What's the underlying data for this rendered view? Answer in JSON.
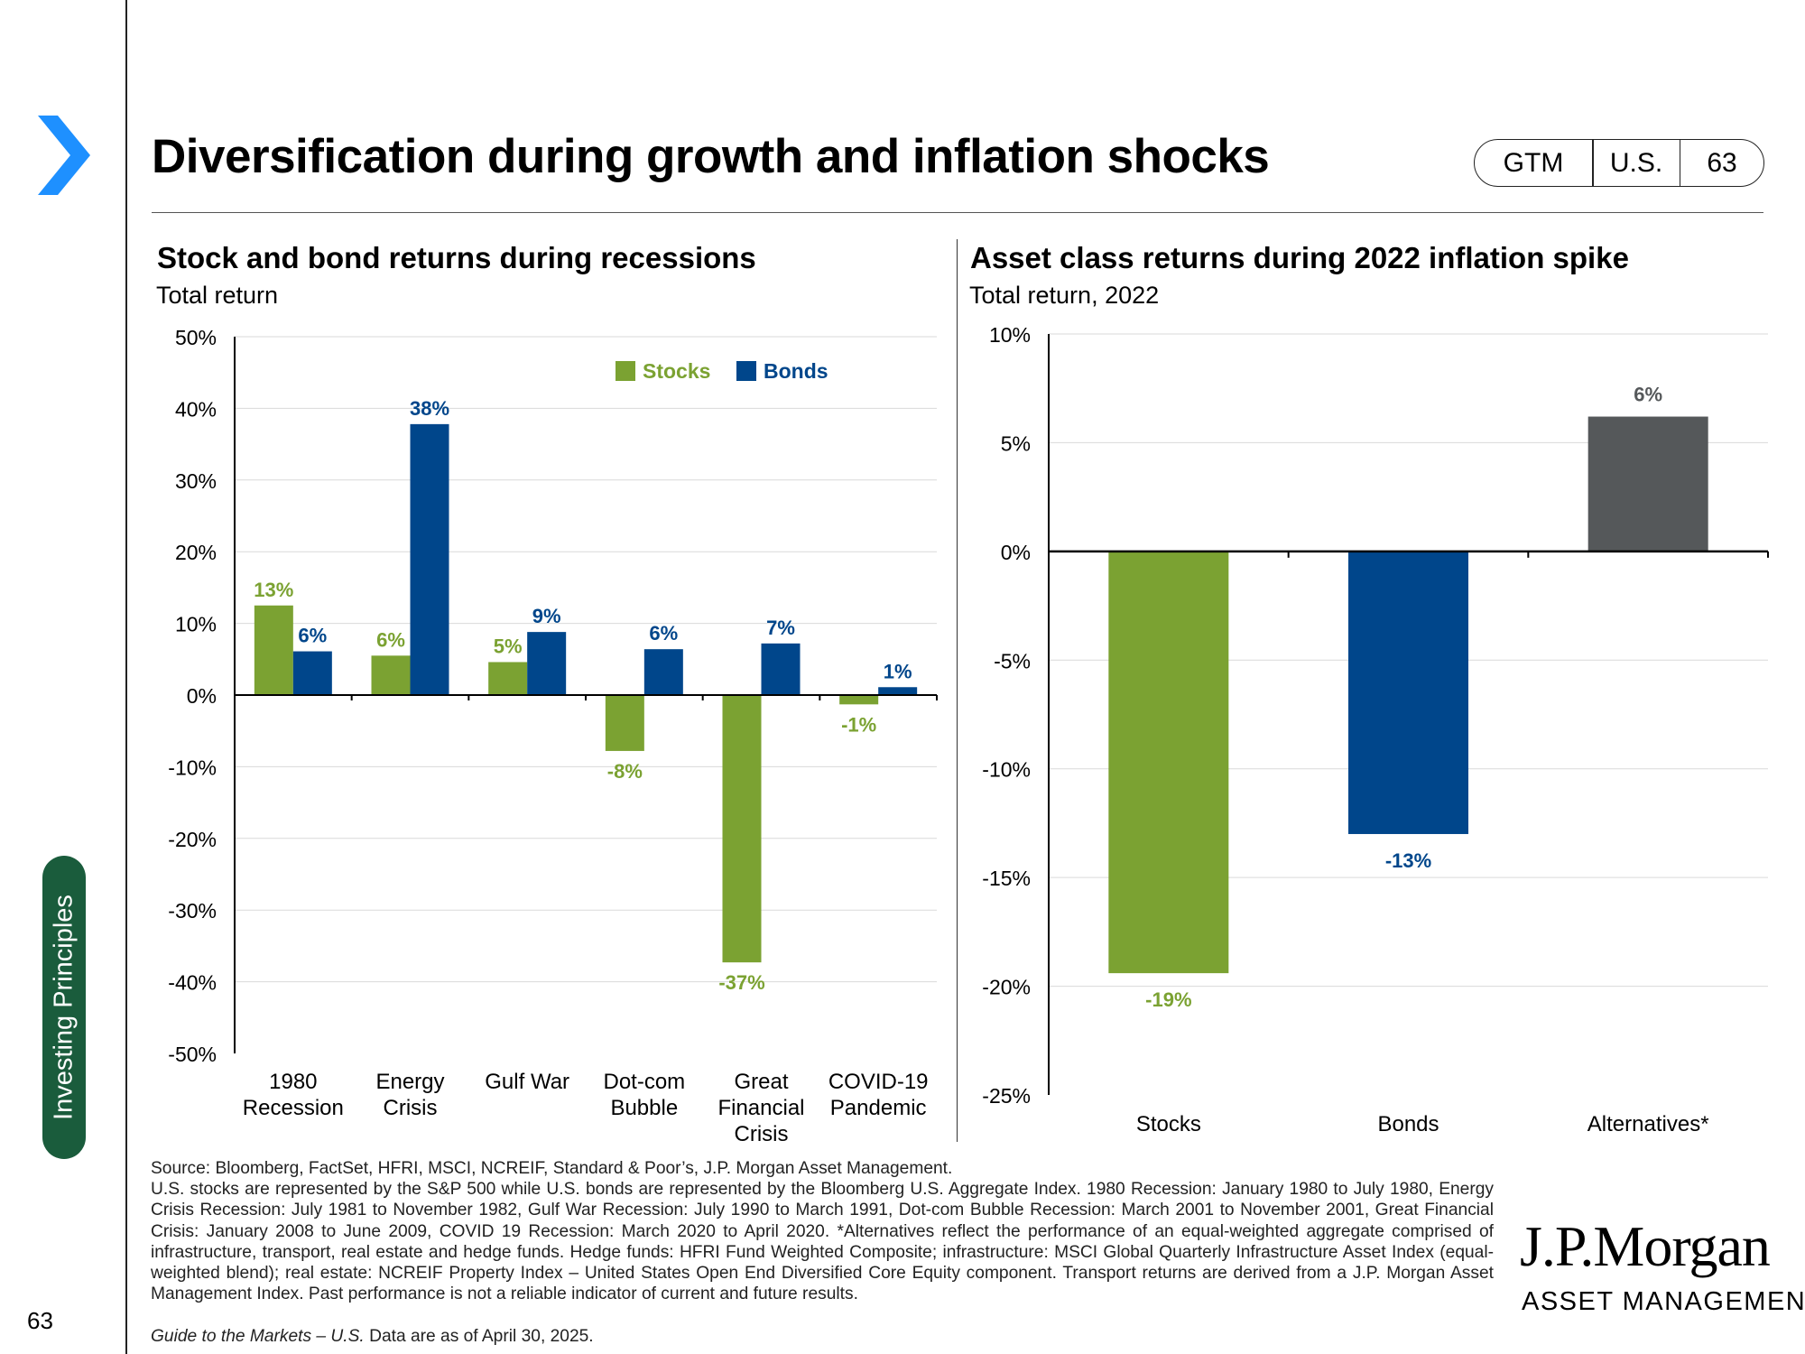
{
  "header": {
    "title": "Diversification during growth and inflation shocks"
  },
  "badge": {
    "guide": "GTM",
    "region": "U.S.",
    "page": "63"
  },
  "sidebar": {
    "section_label": "Investing Principles",
    "slide_number": "63"
  },
  "colors": {
    "stocks": "#7ba232",
    "bonds": "#00468b",
    "alternatives": "#55585a",
    "section_tab": "#1a5c3c",
    "chevron": "#1e90ff"
  },
  "footnotes": {
    "source": "Source: Bloomberg, FactSet, HFRI, MSCI, NCREIF, Standard & Poor’s, J.P. Morgan Asset Management.",
    "body": "U.S. stocks are represented by the S&P 500 while U.S. bonds are represented by the Bloomberg U.S. Aggregate Index. 1980 Recession: January 1980 to July 1980, Energy Crisis Recession: July 1981 to November 1982, Gulf War Recession: July 1990 to March 1991, Dot-com Bubble Recession: March 2001 to November 2001, Great Financial Crisis: January 2008 to June 2009, COVID 19 Recession: March 2020 to April 2020. *Alternatives reflect the performance of an equal-weighted aggregate comprised of infrastructure, transport, real estate and hedge funds. Hedge funds: HFRI Fund Weighted Composite; infrastructure: MSCI Global Quarterly Infrastructure Asset Index (equal-weighted blend); real estate: NCREIF Property Index – United States Open End Diversified Core Equity component. Transport returns are derived from a J.P. Morgan Asset Management Index. Past performance is not a reliable indicator of current and future results.",
    "guide_italic": "Guide to the Markets – U.S.",
    "guide_rest": " Data are as of April 30, 2025."
  },
  "logo": {
    "name": "J.P.Morgan",
    "tagline": "ASSET MANAGEMENT"
  },
  "chart_data": [
    {
      "type": "bar",
      "title": "Stock and bond returns during recessions",
      "subtitle": "Total return",
      "categories": [
        [
          "1980",
          "Recession"
        ],
        [
          "Energy",
          "Crisis"
        ],
        [
          "Gulf War"
        ],
        [
          "Dot-com",
          "Bubble"
        ],
        [
          "Great",
          "Financial",
          "Crisis"
        ],
        [
          "COVID-19",
          "Pandemic"
        ]
      ],
      "series": [
        {
          "name": "Stocks",
          "color": "#7ba232",
          "values": [
            12.5,
            5.5,
            4.6,
            -7.8,
            -37.3,
            -1.3
          ],
          "labels": [
            "13%",
            "6%",
            "5%",
            "-8%",
            "-37%",
            "-1%"
          ]
        },
        {
          "name": "Bonds",
          "color": "#00468b",
          "values": [
            6.1,
            37.8,
            8.8,
            6.4,
            7.2,
            1.1
          ],
          "labels": [
            "6%",
            "38%",
            "9%",
            "6%",
            "7%",
            "1%"
          ]
        }
      ],
      "ylim": [
        -50,
        50
      ],
      "yticks": [
        50,
        40,
        30,
        20,
        10,
        0,
        -10,
        -20,
        -30,
        -40,
        -50
      ],
      "ytick_labels": [
        "50%",
        "40%",
        "30%",
        "20%",
        "10%",
        "0%",
        "-10%",
        "-20%",
        "-30%",
        "-40%",
        "-50%"
      ],
      "grid": true,
      "legend": "top-right"
    },
    {
      "type": "bar",
      "title": "Asset class returns during 2022 inflation spike",
      "subtitle": "Total return, 2022",
      "categories": [
        "Stocks",
        "Bonds",
        "Alternatives*"
      ],
      "values": [
        -19.4,
        -13.0,
        6.2
      ],
      "labels": [
        "-19%",
        "-13%",
        "6%"
      ],
      "colors": [
        "#7ba232",
        "#00468b",
        "#55585a"
      ],
      "ylim": [
        -25,
        10
      ],
      "yticks": [
        10,
        5,
        0,
        -5,
        -10,
        -15,
        -20,
        -25
      ],
      "ytick_labels": [
        "10%",
        "5%",
        "0%",
        "-5%",
        "-10%",
        "-15%",
        "-20%",
        "-25%"
      ],
      "grid": true
    }
  ]
}
